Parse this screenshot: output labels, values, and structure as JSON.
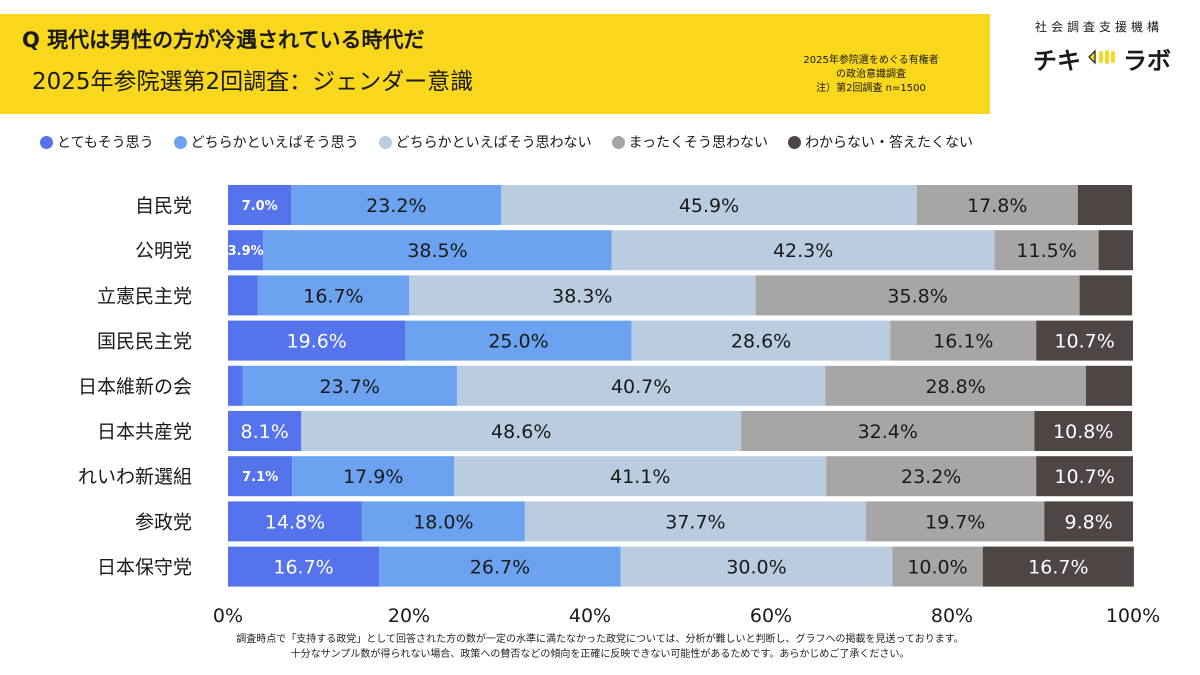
{
  "header": {
    "question": "Q 現代は男性の方が冷遇されている時代だ",
    "subtitle": "2025年参院選第2回調査：ジェンダー意識",
    "survey_note": [
      "2025年参院選をめぐる有権者",
      "の政治意識調査",
      "注）第2回調査 n=1500"
    ]
  },
  "brand": {
    "org_name": "社会調査支援機構",
    "logo_left": "チキ",
    "logo_right": "ラボ"
  },
  "colors": {
    "header_band": "#f9d71c",
    "series": [
      "#5573ea",
      "#6ba3f0",
      "#b9cce0",
      "#a6a6a6",
      "#4e4644"
    ]
  },
  "legend": [
    "とてもそう思う",
    "どちらかといえばそう思う",
    "どちらかといえばそう思わない",
    "まったくそう思わない",
    "わからない・答えたくない"
  ],
  "chart_data": {
    "type": "bar",
    "orientation": "horizontal",
    "stacked": true,
    "xlim": [
      0,
      100
    ],
    "x_ticks": [
      "0%",
      "20%",
      "40%",
      "60%",
      "80%",
      "100%"
    ],
    "categories": [
      "自民党",
      "公明党",
      "立憲民主党",
      "国民民主党",
      "日本維新の会",
      "日本共産党",
      "れいわ新選組",
      "参政党",
      "日本保守党"
    ],
    "series": [
      {
        "name": "とてもそう思う",
        "values": [
          7.0,
          3.9,
          3.3,
          19.6,
          1.6,
          8.1,
          7.1,
          14.8,
          16.7
        ]
      },
      {
        "name": "どちらかといえばそう思う",
        "values": [
          23.2,
          38.5,
          16.7,
          25.0,
          23.7,
          0,
          17.9,
          18.0,
          26.7
        ]
      },
      {
        "name": "どちらかといえばそう思わない",
        "values": [
          45.9,
          42.3,
          38.3,
          28.6,
          40.7,
          48.6,
          41.1,
          37.7,
          30.0
        ]
      },
      {
        "name": "まったくそう思わない",
        "values": [
          17.8,
          11.5,
          35.8,
          16.1,
          28.8,
          32.4,
          23.2,
          19.7,
          10.0
        ]
      },
      {
        "name": "わからない・答えたくない",
        "values": [
          6.0,
          3.8,
          5.8,
          10.7,
          5.1,
          10.8,
          10.7,
          9.8,
          16.7
        ]
      }
    ],
    "labels": [
      [
        "7.0%",
        "23.2%",
        "45.9%",
        "17.8%",
        ""
      ],
      [
        "3.9%",
        "38.5%",
        "42.3%",
        "11.5%",
        ""
      ],
      [
        "",
        "16.7%",
        "38.3%",
        "35.8%",
        ""
      ],
      [
        "19.6%",
        "25.0%",
        "28.6%",
        "16.1%",
        "10.7%"
      ],
      [
        "",
        "23.7%",
        "40.7%",
        "28.8%",
        ""
      ],
      [
        "8.1%",
        "",
        "48.6%",
        "32.4%",
        "10.8%"
      ],
      [
        "7.1%",
        "17.9%",
        "41.1%",
        "23.2%",
        "10.7%"
      ],
      [
        "14.8%",
        "18.0%",
        "37.7%",
        "19.7%",
        "9.8%"
      ],
      [
        "16.7%",
        "26.7%",
        "30.0%",
        "10.0%",
        "16.7%"
      ]
    ]
  },
  "footnote": [
    "調査時点で「支持する政党」として回答された方の数が一定の水準に満たなかった政党については、分析が難しいと判断し、グラフへの掲載を見送っております。",
    "十分なサンプル数が得られない場合、政策への賛否などの傾向を正確に反映できない可能性があるためです。あらかじめご了承ください。"
  ]
}
